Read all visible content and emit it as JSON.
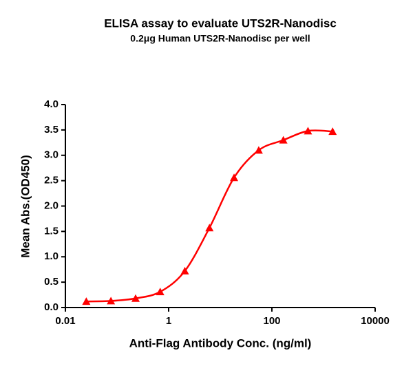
{
  "chart_data": {
    "type": "scatter",
    "title": "ELISA assay to evaluate UTS2R-Nanodisc",
    "subtitle": "0.2μg Human UTS2R-Nanodisc per well",
    "x_label": "Anti-Flag Antibody Conc. (ng/ml)",
    "y_label": "Mean Abs.(OD450)",
    "x_scale": "log",
    "x": [
      0.0254,
      0.0762,
      0.229,
      0.686,
      2.06,
      6.17,
      18.5,
      55.6,
      166.7,
      500,
      1500
    ],
    "series": [
      {
        "name": "UTS2R-Nanodisc",
        "color": "#ff0000",
        "values": [
          0.12,
          0.13,
          0.18,
          0.31,
          0.72,
          1.57,
          2.56,
          3.1,
          3.3,
          3.48,
          3.47
        ]
      }
    ],
    "xlim": [
      0.01,
      10000
    ],
    "xticks": [
      0.01,
      1,
      100,
      10000
    ],
    "ylim": [
      0,
      4
    ],
    "yticks": [
      {
        "value": 0,
        "label": "0.0"
      },
      {
        "value": 0.5,
        "label": "0.5"
      },
      {
        "value": 1,
        "label": "1.0"
      },
      {
        "value": 1.5,
        "label": "1.5"
      },
      {
        "value": 2,
        "label": "2.0"
      },
      {
        "value": 2.5,
        "label": "2.5"
      },
      {
        "value": 3,
        "label": "3.0"
      },
      {
        "value": 3.5,
        "label": "3.5"
      },
      {
        "value": 4,
        "label": "4.0"
      }
    ]
  }
}
